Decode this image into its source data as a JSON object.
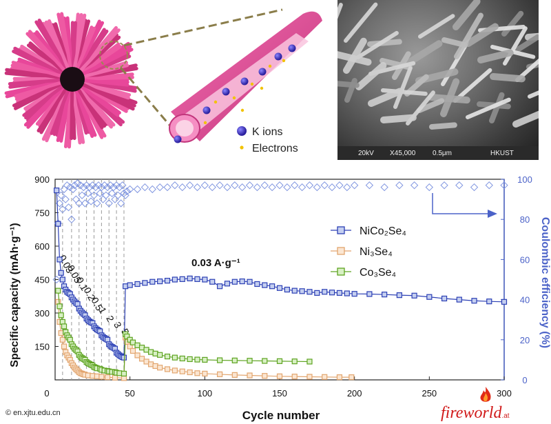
{
  "schematic": {
    "legend": [
      {
        "label": "K ions",
        "color": "#3a2fc0"
      },
      {
        "label": "Electrons",
        "color": "#f2c200"
      }
    ],
    "nanowire_color": "#e8479a"
  },
  "sem_image": {
    "voltage": "20kV",
    "magnification": "X45,000",
    "scale": "0.5μm",
    "institution": "HKUST"
  },
  "chart_data": {
    "type": "scatter",
    "xlabel": "Cycle number",
    "ylabel": "Specific capacity (mAh·g⁻¹)",
    "y2label": "Coulombic efficiency (%)",
    "xlim": [
      0,
      300
    ],
    "ylim": [
      0,
      900
    ],
    "y2lim": [
      0,
      100
    ],
    "xticks": [
      0,
      50,
      100,
      150,
      200,
      250,
      300
    ],
    "yticks": [
      150,
      300,
      450,
      600,
      750,
      900
    ],
    "y2ticks": [
      0,
      20,
      40,
      60,
      80,
      100
    ],
    "rate_labels": [
      "0.03",
      "0.05",
      "0.1",
      "0.2",
      "0.5",
      "1",
      "2",
      "3",
      "5"
    ],
    "rate_stage_boundaries": [
      5,
      11,
      16,
      21,
      26,
      31,
      36,
      41,
      46
    ],
    "annotation": "0.03 A·g⁻¹",
    "legend_position": "center-right",
    "series": [
      {
        "name": "NiCo₂Se₄",
        "color": "#2b3fb4",
        "fill": "#c5cff0",
        "points": [
          [
            1,
            850
          ],
          [
            2,
            700
          ],
          [
            3,
            540
          ],
          [
            4,
            480
          ],
          [
            5,
            450
          ],
          [
            6,
            420
          ],
          [
            7,
            405
          ],
          [
            8,
            395
          ],
          [
            9,
            390
          ],
          [
            10,
            385
          ],
          [
            11,
            370
          ],
          [
            12,
            360
          ],
          [
            13,
            352
          ],
          [
            14,
            345
          ],
          [
            15,
            340
          ],
          [
            16,
            320
          ],
          [
            17,
            310
          ],
          [
            18,
            302
          ],
          [
            19,
            296
          ],
          [
            20,
            290
          ],
          [
            21,
            275
          ],
          [
            22,
            268
          ],
          [
            23,
            262
          ],
          [
            24,
            258
          ],
          [
            25,
            255
          ],
          [
            26,
            240
          ],
          [
            27,
            232
          ],
          [
            28,
            226
          ],
          [
            29,
            222
          ],
          [
            30,
            218
          ],
          [
            31,
            200
          ],
          [
            32,
            193
          ],
          [
            33,
            188
          ],
          [
            34,
            184
          ],
          [
            35,
            180
          ],
          [
            36,
            160
          ],
          [
            37,
            153
          ],
          [
            38,
            148
          ],
          [
            39,
            144
          ],
          [
            40,
            140
          ],
          [
            41,
            122
          ],
          [
            42,
            116
          ],
          [
            43,
            110
          ],
          [
            44,
            106
          ],
          [
            45,
            102
          ],
          [
            46,
            100
          ],
          [
            47,
            420
          ],
          [
            50,
            425
          ],
          [
            55,
            430
          ],
          [
            60,
            435
          ],
          [
            65,
            440
          ],
          [
            70,
            442
          ],
          [
            75,
            445
          ],
          [
            80,
            450
          ],
          [
            85,
            452
          ],
          [
            90,
            455
          ],
          [
            95,
            452
          ],
          [
            100,
            450
          ],
          [
            105,
            440
          ],
          [
            110,
            420
          ],
          [
            115,
            432
          ],
          [
            120,
            440
          ],
          [
            125,
            442
          ],
          [
            130,
            440
          ],
          [
            135,
            430
          ],
          [
            140,
            425
          ],
          [
            145,
            420
          ],
          [
            150,
            412
          ],
          [
            155,
            405
          ],
          [
            160,
            400
          ],
          [
            165,
            398
          ],
          [
            170,
            395
          ],
          [
            175,
            390
          ],
          [
            180,
            395
          ],
          [
            185,
            392
          ],
          [
            190,
            390
          ],
          [
            195,
            388
          ],
          [
            200,
            386
          ],
          [
            210,
            385
          ],
          [
            220,
            383
          ],
          [
            230,
            380
          ],
          [
            240,
            378
          ],
          [
            250,
            372
          ],
          [
            260,
            365
          ],
          [
            270,
            360
          ],
          [
            280,
            355
          ],
          [
            290,
            352
          ],
          [
            300,
            350
          ]
        ]
      },
      {
        "name": "Ni₃Se₄",
        "color": "#e2a56e",
        "fill": "#fbe6d2",
        "points": [
          [
            2,
            350
          ],
          [
            3,
            260
          ],
          [
            4,
            210
          ],
          [
            5,
            180
          ],
          [
            6,
            150
          ],
          [
            7,
            125
          ],
          [
            8,
            110
          ],
          [
            9,
            100
          ],
          [
            10,
            90
          ],
          [
            11,
            75
          ],
          [
            12,
            65
          ],
          [
            13,
            55
          ],
          [
            14,
            48
          ],
          [
            15,
            42
          ],
          [
            16,
            35
          ],
          [
            17,
            30
          ],
          [
            18,
            28
          ],
          [
            19,
            25
          ],
          [
            20,
            23
          ],
          [
            22,
            20
          ],
          [
            25,
            18
          ],
          [
            28,
            16
          ],
          [
            31,
            14
          ],
          [
            35,
            12
          ],
          [
            40,
            10
          ],
          [
            46,
            8
          ],
          [
            47,
            190
          ],
          [
            48,
            170
          ],
          [
            50,
            150
          ],
          [
            52,
            130
          ],
          [
            55,
            110
          ],
          [
            58,
            95
          ],
          [
            61,
            82
          ],
          [
            64,
            70
          ],
          [
            67,
            62
          ],
          [
            70,
            55
          ],
          [
            75,
            48
          ],
          [
            80,
            42
          ],
          [
            85,
            38
          ],
          [
            90,
            34
          ],
          [
            95,
            30
          ],
          [
            100,
            28
          ],
          [
            110,
            25
          ],
          [
            120,
            22
          ],
          [
            130,
            20
          ],
          [
            140,
            18
          ],
          [
            150,
            16
          ],
          [
            160,
            15
          ],
          [
            170,
            14
          ],
          [
            180,
            13
          ],
          [
            190,
            12
          ],
          [
            198,
            12
          ]
        ]
      },
      {
        "name": "Co₃Se₄",
        "color": "#5da320",
        "fill": "#d8f0c4",
        "points": [
          [
            2,
            400
          ],
          [
            3,
            330
          ],
          [
            4,
            290
          ],
          [
            5,
            260
          ],
          [
            6,
            240
          ],
          [
            7,
            215
          ],
          [
            8,
            200
          ],
          [
            9,
            190
          ],
          [
            10,
            180
          ],
          [
            11,
            160
          ],
          [
            12,
            150
          ],
          [
            13,
            140
          ],
          [
            14,
            134
          ],
          [
            15,
            128
          ],
          [
            16,
            112
          ],
          [
            17,
            104
          ],
          [
            18,
            98
          ],
          [
            19,
            94
          ],
          [
            20,
            90
          ],
          [
            21,
            80
          ],
          [
            22,
            75
          ],
          [
            23,
            72
          ],
          [
            24,
            68
          ],
          [
            25,
            65
          ],
          [
            26,
            58
          ],
          [
            27,
            55
          ],
          [
            28,
            52
          ],
          [
            30,
            50
          ],
          [
            31,
            45
          ],
          [
            33,
            42
          ],
          [
            35,
            40
          ],
          [
            36,
            38
          ],
          [
            38,
            36
          ],
          [
            40,
            35
          ],
          [
            41,
            32
          ],
          [
            43,
            30
          ],
          [
            46,
            28
          ],
          [
            47,
            205
          ],
          [
            48,
            195
          ],
          [
            50,
            180
          ],
          [
            52,
            168
          ],
          [
            55,
            155
          ],
          [
            58,
            145
          ],
          [
            61,
            135
          ],
          [
            64,
            125
          ],
          [
            67,
            118
          ],
          [
            70,
            112
          ],
          [
            75,
            105
          ],
          [
            80,
            100
          ],
          [
            85,
            96
          ],
          [
            90,
            93
          ],
          [
            95,
            91
          ],
          [
            100,
            90
          ],
          [
            110,
            88
          ],
          [
            120,
            87
          ],
          [
            130,
            86
          ],
          [
            140,
            85
          ],
          [
            150,
            84
          ],
          [
            160,
            83
          ],
          [
            170,
            82
          ]
        ]
      }
    ],
    "ce_points": [
      [
        1,
        50
      ],
      [
        2,
        78
      ],
      [
        3,
        88
      ],
      [
        4,
        92
      ],
      [
        5,
        85
      ],
      [
        6,
        95
      ],
      [
        7,
        90
      ],
      [
        8,
        97
      ],
      [
        9,
        86
      ],
      [
        10,
        96
      ],
      [
        11,
        80
      ],
      [
        12,
        95
      ],
      [
        13,
        97
      ],
      [
        14,
        90
      ],
      [
        15,
        98
      ],
      [
        16,
        88
      ],
      [
        17,
        97
      ],
      [
        18,
        92
      ],
      [
        19,
        96
      ],
      [
        20,
        88
      ],
      [
        21,
        97
      ],
      [
        22,
        93
      ],
      [
        23,
        96
      ],
      [
        24,
        89
      ],
      [
        25,
        97
      ],
      [
        26,
        92
      ],
      [
        27,
        96
      ],
      [
        28,
        88
      ],
      [
        29,
        97
      ],
      [
        30,
        93
      ],
      [
        31,
        96
      ],
      [
        32,
        90
      ],
      [
        33,
        97
      ],
      [
        34,
        92
      ],
      [
        35,
        96
      ],
      [
        36,
        88
      ],
      [
        37,
        97
      ],
      [
        38,
        93
      ],
      [
        39,
        96
      ],
      [
        40,
        90
      ],
      [
        41,
        97
      ],
      [
        42,
        92
      ],
      [
        43,
        96
      ],
      [
        44,
        88
      ],
      [
        45,
        97
      ],
      [
        46,
        93
      ],
      [
        47,
        92
      ],
      [
        48,
        94
      ],
      [
        50,
        95
      ],
      [
        55,
        95
      ],
      [
        60,
        96
      ],
      [
        65,
        95
      ],
      [
        70,
        96
      ],
      [
        75,
        96
      ],
      [
        80,
        97
      ],
      [
        85,
        96
      ],
      [
        90,
        97
      ],
      [
        95,
        96
      ],
      [
        100,
        97
      ],
      [
        105,
        96
      ],
      [
        110,
        97
      ],
      [
        115,
        96
      ],
      [
        120,
        97
      ],
      [
        125,
        96
      ],
      [
        130,
        97
      ],
      [
        135,
        96
      ],
      [
        140,
        97
      ],
      [
        145,
        96
      ],
      [
        150,
        97
      ],
      [
        155,
        96
      ],
      [
        160,
        97
      ],
      [
        165,
        96
      ],
      [
        170,
        97
      ],
      [
        175,
        96
      ],
      [
        180,
        97
      ],
      [
        185,
        96
      ],
      [
        190,
        97
      ],
      [
        195,
        96
      ],
      [
        200,
        97
      ],
      [
        210,
        97
      ],
      [
        220,
        96
      ],
      [
        230,
        97
      ],
      [
        240,
        97
      ],
      [
        250,
        96
      ],
      [
        260,
        97
      ],
      [
        270,
        97
      ],
      [
        280,
        96
      ],
      [
        290,
        97
      ],
      [
        300,
        97
      ]
    ]
  },
  "credits": {
    "left": "© en.xjtu.edu.cn",
    "logo_text": "fireworld",
    "logo_suffix": ".at"
  }
}
